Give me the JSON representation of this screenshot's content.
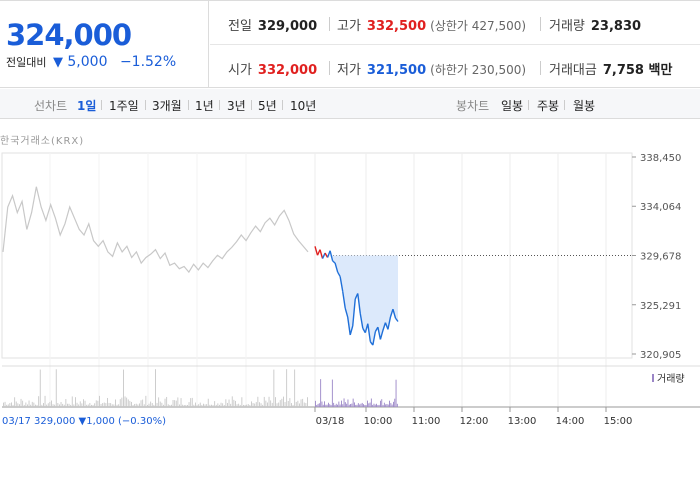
{
  "price": {
    "current": "324,000",
    "change_label": "전일대비",
    "change_icon": "down-triangle-icon",
    "change_value": "5,000",
    "change_pct": "−1.52%"
  },
  "info": {
    "prev_close": {
      "label": "전일",
      "value": "329,000"
    },
    "high": {
      "label": "고가",
      "value": "332,500",
      "sub": "(상한가 427,500)"
    },
    "volume": {
      "label": "거래량",
      "value": "23,830"
    },
    "open": {
      "label": "시가",
      "value": "332,000"
    },
    "low": {
      "label": "저가",
      "value": "321,500",
      "sub": "(하한가 230,500)"
    },
    "turnover": {
      "label": "거래대금",
      "value": "7,758 백만"
    }
  },
  "tabs": {
    "line_label": "선차트",
    "line_periods": [
      "1일",
      "1주일",
      "3개월",
      "1년",
      "3년",
      "5년",
      "10년"
    ],
    "active_period": "1일",
    "candle_label": "봉차트",
    "candle_periods": [
      "일봉",
      "주봉",
      "월봉"
    ]
  },
  "chart_source": "한국거래소(KRX)",
  "volume_legend": "거래량",
  "prev_day_summary": "03/17  329,000 ▼1,000 (−0.30%)",
  "chart_data": {
    "type": "line",
    "y_ticks": [
      "338,450",
      "334,064",
      "329,678",
      "325,291",
      "320,905"
    ],
    "ylim": [
      320905,
      338450
    ],
    "reference_line": 329678,
    "x_ticks": [
      "03/18",
      "10:00",
      "11:00",
      "12:00",
      "13:00",
      "14:00",
      "15:00"
    ],
    "series": [
      {
        "day": "03/17",
        "color": "#c8c8c8",
        "values": [
          330000,
          334000,
          335000,
          333500,
          334500,
          332000,
          333500,
          335800,
          334000,
          332800,
          334200,
          333000,
          331500,
          332500,
          334000,
          333000,
          332000,
          331500,
          332500,
          331000,
          330500,
          331000,
          330000,
          329600,
          330800,
          330000,
          330500,
          329500,
          330000,
          329000,
          329500,
          329800,
          330200,
          329400,
          329900,
          328800,
          329000,
          328500,
          328700,
          328200,
          328900,
          328400,
          329000,
          328600,
          329200,
          329700,
          329400,
          330000,
          330400,
          330900,
          331500,
          331000,
          331700,
          332300,
          331800,
          332600,
          333000,
          332400,
          333200,
          333700,
          332800,
          331600,
          331000,
          330500,
          330000
        ]
      },
      {
        "day": "03/18",
        "color": "#1f6fd8",
        "values": [
          330500,
          329700,
          330200,
          329400,
          329900,
          329500,
          330100,
          329200,
          329000,
          328200,
          327800,
          326500,
          325000,
          324200,
          322600,
          323400,
          325800,
          326300,
          324500,
          323200,
          322800,
          323600,
          322000,
          321700,
          322900,
          323300,
          322200,
          323000,
          323700,
          323100,
          324200,
          324900,
          324100,
          323800
        ]
      }
    ],
    "up_segment_color": "#e0201f",
    "fill_color": "#dce9fb",
    "volume_color_prev": "#c8c8c8",
    "volume_color_today": "#9b86c7"
  }
}
